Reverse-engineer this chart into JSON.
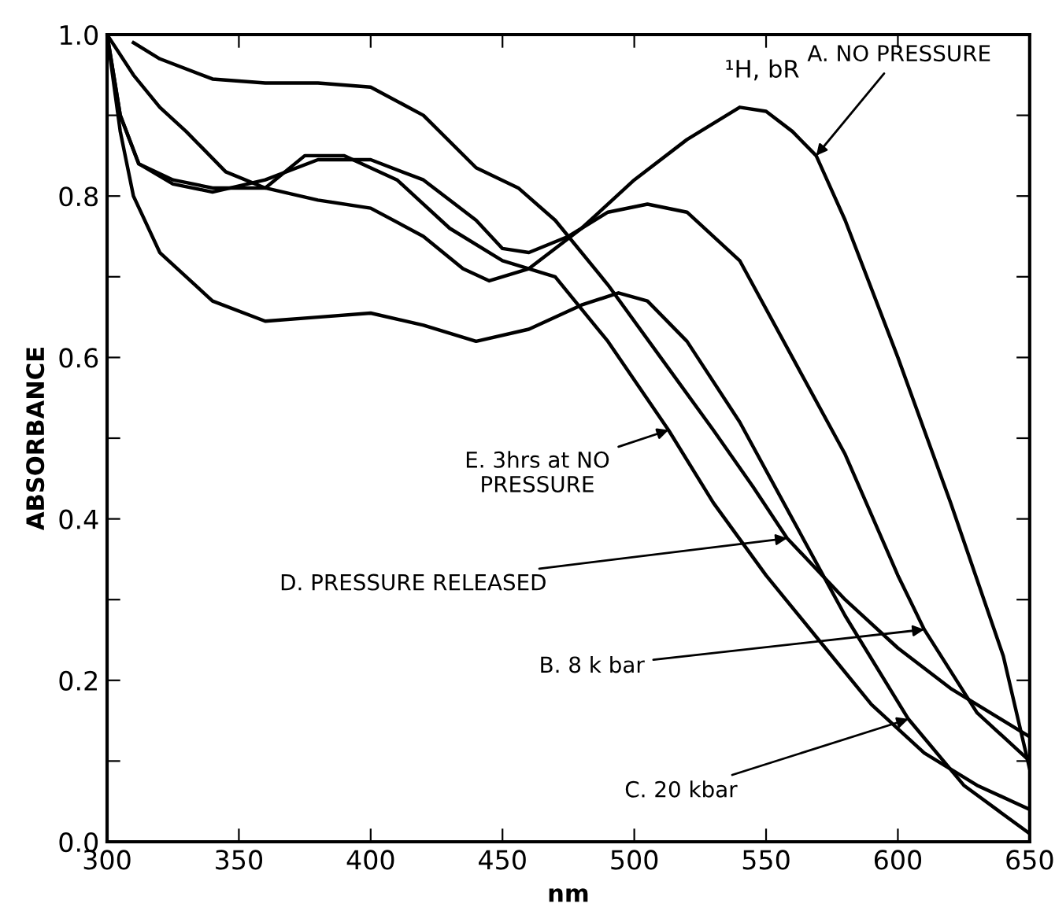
{
  "chart_data": {
    "type": "line",
    "xlabel": "nm",
    "ylabel": "ABSORBANCE",
    "xlim": [
      300,
      650
    ],
    "ylim": [
      0,
      1.0
    ],
    "xticks": [
      300,
      350,
      400,
      450,
      500,
      550,
      600,
      650
    ],
    "yticks": [
      {
        "value": 0,
        "label": "0.0"
      },
      {
        "value": 0.1,
        "label": null
      },
      {
        "value": 0.2,
        "label": "0.2"
      },
      {
        "value": 0.3,
        "label": null
      },
      {
        "value": 0.4,
        "label": "0.4"
      },
      {
        "value": 0.5,
        "label": null
      },
      {
        "value": 0.6,
        "label": "0.6"
      },
      {
        "value": 0.7,
        "label": null
      },
      {
        "value": 0.8,
        "label": "0.8"
      },
      {
        "value": 0.9,
        "label": null
      },
      {
        "value": 1.0,
        "label": "1.0"
      }
    ],
    "grid": false,
    "marker": "none",
    "line_style": "solid",
    "series": [
      {
        "color": "#000000",
        "x": [
          300,
          310,
          320,
          330,
          345,
          360,
          380,
          400,
          420,
          435,
          445,
          460,
          480,
          500,
          520,
          540,
          550,
          560,
          569,
          580,
          600,
          620,
          640,
          650
        ],
        "values": [
          1.0,
          0.95,
          0.91,
          0.88,
          0.83,
          0.81,
          0.795,
          0.785,
          0.75,
          0.71,
          0.695,
          0.71,
          0.76,
          0.82,
          0.87,
          0.91,
          0.905,
          0.88,
          0.85,
          0.77,
          0.6,
          0.42,
          0.23,
          0.09
        ]
      },
      {
        "color": "#000000",
        "x": [
          300,
          305,
          312,
          325,
          340,
          360,
          380,
          400,
          420,
          440,
          450,
          460,
          475,
          490,
          505,
          520,
          540,
          560,
          580,
          600,
          610,
          630,
          650
        ],
        "values": [
          1.0,
          0.9,
          0.84,
          0.815,
          0.805,
          0.82,
          0.845,
          0.845,
          0.82,
          0.77,
          0.735,
          0.73,
          0.75,
          0.78,
          0.79,
          0.78,
          0.72,
          0.6,
          0.48,
          0.33,
          0.263,
          0.16,
          0.1
        ]
      },
      {
        "color": "#000000",
        "x": [
          300,
          305,
          310,
          320,
          340,
          360,
          380,
          400,
          420,
          440,
          460,
          480,
          494,
          505,
          520,
          540,
          560,
          580,
          604,
          625,
          650
        ],
        "values": [
          1.0,
          0.88,
          0.8,
          0.73,
          0.67,
          0.645,
          0.65,
          0.655,
          0.64,
          0.62,
          0.635,
          0.665,
          0.68,
          0.67,
          0.62,
          0.52,
          0.4,
          0.28,
          0.152,
          0.07,
          0.01
        ]
      },
      {
        "color": "#000000",
        "x": [
          310,
          320,
          340,
          360,
          380,
          400,
          420,
          440,
          456,
          470,
          490,
          510,
          530,
          545,
          558,
          580,
          600,
          620,
          650
        ],
        "values": [
          0.99,
          0.97,
          0.945,
          0.94,
          0.94,
          0.935,
          0.9,
          0.835,
          0.81,
          0.77,
          0.69,
          0.6,
          0.51,
          0.44,
          0.376,
          0.3,
          0.24,
          0.19,
          0.13
        ]
      },
      {
        "color": "#000000",
        "x": [
          300,
          305,
          312,
          325,
          340,
          360,
          375,
          390,
          410,
          430,
          450,
          470,
          490,
          513,
          530,
          550,
          570,
          590,
          610,
          630,
          650
        ],
        "values": [
          1.0,
          0.9,
          0.84,
          0.82,
          0.81,
          0.81,
          0.85,
          0.85,
          0.82,
          0.76,
          0.72,
          0.7,
          0.62,
          0.51,
          0.42,
          0.33,
          0.25,
          0.17,
          0.11,
          0.07,
          0.04
        ]
      }
    ],
    "annotations": [
      "¹H, bR",
      {
        "text": "A. NO PRESSURE",
        "x": 569,
        "y": 0.85
      },
      {
        "text": "E. 3hrs at NO\nPRESSURE",
        "x": 513,
        "y": 0.51
      },
      {
        "text": "D. PRESSURE RELEASED",
        "x": 558,
        "y": 0.376
      },
      {
        "text": "B. 8 k bar",
        "x": 610,
        "y": 0.263
      },
      {
        "text": "C. 20 kbar",
        "x": 604,
        "y": 0.152
      }
    ]
  }
}
